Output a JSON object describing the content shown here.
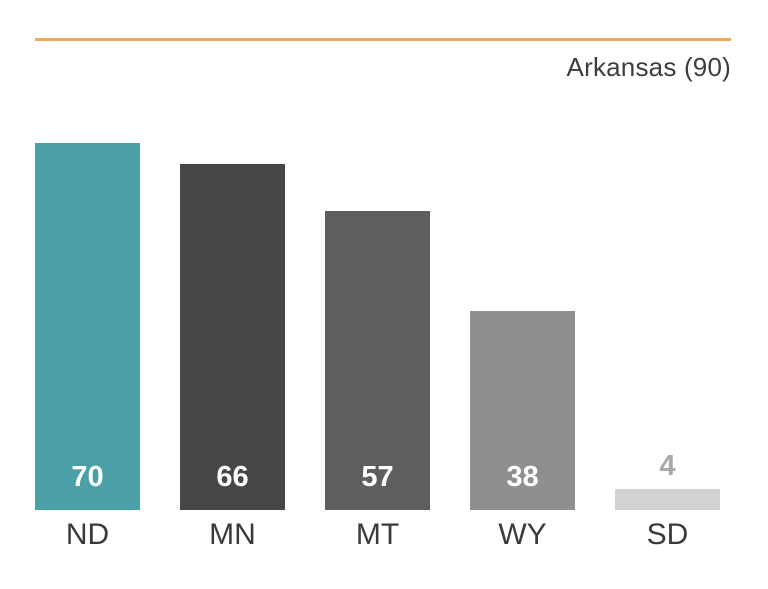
{
  "header": {
    "title": "Arkansas (90)"
  },
  "chart_data": {
    "type": "bar",
    "title": "Arkansas (90)",
    "categories": [
      "ND",
      "MN",
      "MT",
      "WY",
      "SD"
    ],
    "values": [
      70,
      66,
      57,
      38,
      4
    ],
    "ylim": [
      0,
      90
    ],
    "xlabel": "",
    "ylabel": "",
    "grid": false,
    "legend_position": "none",
    "bar_colors": [
      "#4ba0a8",
      "#474747",
      "#5e5e5e",
      "#8f8f8f",
      "#d2d2d2"
    ],
    "highlight_color": "#4ba0a8",
    "value_label_color_inside": "#ffffff",
    "value_label_color_outside": "#a8a8a8",
    "accent_rule_color": "#efa958"
  }
}
